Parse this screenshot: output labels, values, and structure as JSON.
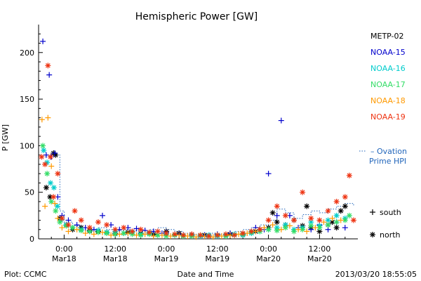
{
  "chart_data": {
    "type": "scatter",
    "title": "Hemispheric Power [GW]",
    "xlabel": "Date and Time",
    "ylabel": "P [GW]",
    "ylim": [
      0,
      230
    ],
    "xlim": [
      -6,
      69
    ],
    "yticks": [
      0,
      50,
      100,
      150,
      200
    ],
    "xticks": [
      {
        "x": 0,
        "time": "0:00",
        "date": "Mar18"
      },
      {
        "x": 12,
        "time": "12:00",
        "date": "Mar18"
      },
      {
        "x": 24,
        "time": "0:00",
        "date": "Mar19"
      },
      {
        "x": 36,
        "time": "12:00",
        "date": "Mar19"
      },
      {
        "x": 48,
        "time": "0:00",
        "date": "Mar20"
      },
      {
        "x": 60,
        "time": "12:00",
        "date": "Mar20"
      }
    ],
    "legend_position": "right",
    "hemisphere_legend": [
      {
        "symbol": "+",
        "label": "south"
      },
      {
        "symbol": "*",
        "label": "north"
      }
    ],
    "series": [
      {
        "name": "METP-02",
        "color": "#000000",
        "marker": "*",
        "points": [
          [
            -4.2,
            55
          ],
          [
            -3.3,
            45
          ],
          [
            -2.5,
            92
          ],
          [
            -2.0,
            90
          ],
          [
            -1.0,
            22
          ],
          [
            0.5,
            15
          ],
          [
            2,
            10
          ],
          [
            4,
            12
          ],
          [
            6,
            9
          ],
          [
            8,
            8
          ],
          [
            10,
            7
          ],
          [
            12,
            6
          ],
          [
            15,
            7
          ],
          [
            18,
            6
          ],
          [
            21,
            5
          ],
          [
            24,
            8
          ],
          [
            27,
            6
          ],
          [
            30,
            4
          ],
          [
            33,
            4
          ],
          [
            36,
            4
          ],
          [
            39,
            5
          ],
          [
            42,
            4
          ],
          [
            45,
            8
          ],
          [
            46,
            10
          ],
          [
            48,
            12
          ],
          [
            49,
            28
          ],
          [
            50,
            18
          ],
          [
            52,
            15
          ],
          [
            54,
            20
          ],
          [
            56,
            14
          ],
          [
            57,
            35
          ],
          [
            58,
            12
          ],
          [
            60,
            8
          ],
          [
            62,
            15
          ],
          [
            63,
            18
          ],
          [
            64,
            12
          ],
          [
            65,
            30
          ],
          [
            66,
            35
          ]
        ]
      },
      {
        "name": "NOAA-15",
        "color": "#0000cc",
        "marker": "+",
        "points": [
          [
            -5.0,
            212
          ],
          [
            -4.2,
            90
          ],
          [
            -3.5,
            176
          ],
          [
            -3.0,
            88
          ],
          [
            -2.2,
            92
          ],
          [
            -1.5,
            45
          ],
          [
            -0.5,
            25
          ],
          [
            1,
            20
          ],
          [
            3,
            15
          ],
          [
            5,
            12
          ],
          [
            7,
            10
          ],
          [
            9,
            25
          ],
          [
            11,
            15
          ],
          [
            13,
            10
          ],
          [
            15,
            12
          ],
          [
            17,
            11
          ],
          [
            19,
            9
          ],
          [
            21,
            8
          ],
          [
            23,
            6
          ],
          [
            24,
            7
          ],
          [
            27,
            5
          ],
          [
            30,
            4
          ],
          [
            33,
            4
          ],
          [
            36,
            5
          ],
          [
            39,
            6
          ],
          [
            42,
            5
          ],
          [
            45,
            12
          ],
          [
            47,
            10
          ],
          [
            48,
            70
          ],
          [
            50,
            25
          ],
          [
            51,
            127
          ],
          [
            53,
            25
          ],
          [
            55,
            12
          ],
          [
            58,
            10
          ],
          [
            60,
            15
          ],
          [
            62,
            10
          ],
          [
            64,
            18
          ],
          [
            66,
            12
          ]
        ]
      },
      {
        "name": "NOAA-16",
        "color": "#00cccc",
        "marker": "*",
        "points": [
          [
            -4.8,
            95
          ],
          [
            -4.0,
            82
          ],
          [
            -3.2,
            60
          ],
          [
            -2.4,
            55
          ],
          [
            -1.6,
            35
          ],
          [
            -0.8,
            20
          ],
          [
            0.5,
            15
          ],
          [
            2,
            12
          ],
          [
            4,
            10
          ],
          [
            6,
            8
          ],
          [
            8,
            9
          ],
          [
            10,
            7
          ],
          [
            12,
            8
          ],
          [
            14,
            6
          ],
          [
            16,
            7
          ],
          [
            18,
            5
          ],
          [
            20,
            6
          ],
          [
            22,
            4
          ],
          [
            24,
            5
          ],
          [
            26,
            4
          ],
          [
            28,
            3
          ],
          [
            30,
            4
          ],
          [
            32,
            3
          ],
          [
            34,
            4
          ],
          [
            36,
            3
          ],
          [
            38,
            4
          ],
          [
            40,
            5
          ],
          [
            42,
            4
          ],
          [
            44,
            6
          ],
          [
            46,
            8
          ],
          [
            48,
            10
          ],
          [
            50,
            12
          ],
          [
            52,
            15
          ],
          [
            54,
            10
          ],
          [
            56,
            12
          ],
          [
            58,
            18
          ],
          [
            60,
            14
          ],
          [
            62,
            20
          ],
          [
            64,
            25
          ],
          [
            66,
            22
          ]
        ]
      },
      {
        "name": "NOAA-17",
        "color": "#33dd66",
        "marker": "*",
        "points": [
          [
            -5.0,
            100
          ],
          [
            -4.0,
            70
          ],
          [
            -3.0,
            40
          ],
          [
            -2.0,
            30
          ],
          [
            -1.0,
            18
          ],
          [
            0.5,
            14
          ],
          [
            2,
            12
          ],
          [
            4,
            9
          ],
          [
            6,
            8
          ],
          [
            8,
            7
          ],
          [
            10,
            6
          ],
          [
            12,
            5
          ],
          [
            14,
            6
          ],
          [
            16,
            5
          ],
          [
            18,
            4
          ],
          [
            20,
            5
          ],
          [
            22,
            4
          ],
          [
            24,
            3
          ],
          [
            26,
            4
          ],
          [
            28,
            3
          ],
          [
            30,
            3
          ],
          [
            32,
            4
          ],
          [
            34,
            3
          ],
          [
            36,
            4
          ],
          [
            38,
            3
          ],
          [
            40,
            4
          ],
          [
            42,
            5
          ],
          [
            44,
            7
          ],
          [
            46,
            8
          ],
          [
            48,
            10
          ],
          [
            50,
            9
          ],
          [
            52,
            12
          ],
          [
            54,
            8
          ],
          [
            56,
            10
          ],
          [
            58,
            14
          ],
          [
            60,
            12
          ],
          [
            62,
            15
          ],
          [
            64,
            18
          ],
          [
            66,
            20
          ],
          [
            67,
            25
          ]
        ]
      },
      {
        "name": "NOAA-18",
        "color": "#ff9900",
        "marker": "+",
        "points": [
          [
            -5.2,
            128
          ],
          [
            -4.5,
            35
          ],
          [
            -3.8,
            130
          ],
          [
            -3.0,
            78
          ],
          [
            -2.2,
            38
          ],
          [
            -1.5,
            22
          ],
          [
            -0.5,
            12
          ],
          [
            1,
            8
          ],
          [
            3,
            10
          ],
          [
            5,
            6
          ],
          [
            7,
            5
          ],
          [
            9,
            7
          ],
          [
            11,
            4
          ],
          [
            13,
            5
          ],
          [
            15,
            6
          ],
          [
            17,
            4
          ],
          [
            19,
            5
          ],
          [
            21,
            3
          ],
          [
            23,
            4
          ],
          [
            25,
            3
          ],
          [
            27,
            4
          ],
          [
            29,
            3
          ],
          [
            31,
            2
          ],
          [
            33,
            3
          ],
          [
            35,
            2
          ],
          [
            37,
            3
          ],
          [
            39,
            4
          ],
          [
            41,
            5
          ],
          [
            43,
            6
          ],
          [
            45,
            8
          ],
          [
            47,
            12
          ],
          [
            49,
            15
          ],
          [
            51,
            10
          ],
          [
            53,
            14
          ],
          [
            55,
            10
          ],
          [
            57,
            8
          ],
          [
            59,
            12
          ],
          [
            61,
            18
          ],
          [
            63,
            22
          ],
          [
            65,
            20
          ]
        ]
      },
      {
        "name": "NOAA-19",
        "color": "#ee3311",
        "marker": "*",
        "points": [
          [
            -5.3,
            88
          ],
          [
            -4.5,
            80
          ],
          [
            -3.8,
            186
          ],
          [
            -3.2,
            88
          ],
          [
            -2.5,
            45
          ],
          [
            -1.5,
            70
          ],
          [
            -0.5,
            22
          ],
          [
            1,
            15
          ],
          [
            2.5,
            30
          ],
          [
            4,
            20
          ],
          [
            6,
            12
          ],
          [
            8,
            18
          ],
          [
            10,
            15
          ],
          [
            12,
            10
          ],
          [
            14,
            12
          ],
          [
            16,
            8
          ],
          [
            18,
            10
          ],
          [
            20,
            7
          ],
          [
            22,
            8
          ],
          [
            24,
            6
          ],
          [
            26,
            5
          ],
          [
            28,
            4
          ],
          [
            30,
            5
          ],
          [
            32,
            4
          ],
          [
            34,
            3
          ],
          [
            36,
            4
          ],
          [
            38,
            5
          ],
          [
            40,
            4
          ],
          [
            42,
            6
          ],
          [
            44,
            8
          ],
          [
            46,
            10
          ],
          [
            48,
            20
          ],
          [
            50,
            35
          ],
          [
            52,
            25
          ],
          [
            54,
            20
          ],
          [
            56,
            50
          ],
          [
            58,
            22
          ],
          [
            60,
            20
          ],
          [
            62,
            30
          ],
          [
            64,
            40
          ],
          [
            66,
            45
          ],
          [
            67,
            68
          ],
          [
            68,
            20
          ]
        ]
      }
    ],
    "ovation_line": {
      "name": "Ovation Prime HPI",
      "legend_prefix": "–",
      "color": "#2266bb",
      "style": "dotted-step",
      "points": [
        [
          -5,
          88
        ],
        [
          -3,
          92
        ],
        [
          -2,
          90
        ],
        [
          -1,
          30
        ],
        [
          0,
          18
        ],
        [
          2,
          14
        ],
        [
          4,
          12
        ],
        [
          6,
          10
        ],
        [
          8,
          12
        ],
        [
          10,
          10
        ],
        [
          12,
          9
        ],
        [
          14,
          10
        ],
        [
          16,
          9
        ],
        [
          18,
          8
        ],
        [
          20,
          10
        ],
        [
          22,
          12
        ],
        [
          24,
          10
        ],
        [
          26,
          8
        ],
        [
          28,
          6
        ],
        [
          30,
          5
        ],
        [
          32,
          5
        ],
        [
          34,
          6
        ],
        [
          36,
          5
        ],
        [
          38,
          6
        ],
        [
          40,
          8
        ],
        [
          42,
          10
        ],
        [
          44,
          12
        ],
        [
          46,
          15
        ],
        [
          48,
          20
        ],
        [
          50,
          32
        ],
        [
          52,
          28
        ],
        [
          54,
          22
        ],
        [
          56,
          26
        ],
        [
          58,
          30
        ],
        [
          60,
          28
        ],
        [
          62,
          32
        ],
        [
          64,
          35
        ],
        [
          66,
          38
        ],
        [
          68,
          36
        ]
      ]
    }
  },
  "footer": {
    "left": "Plot: CCMC",
    "center": "Date and Time",
    "right": "2013/03/20  18:55:05"
  }
}
